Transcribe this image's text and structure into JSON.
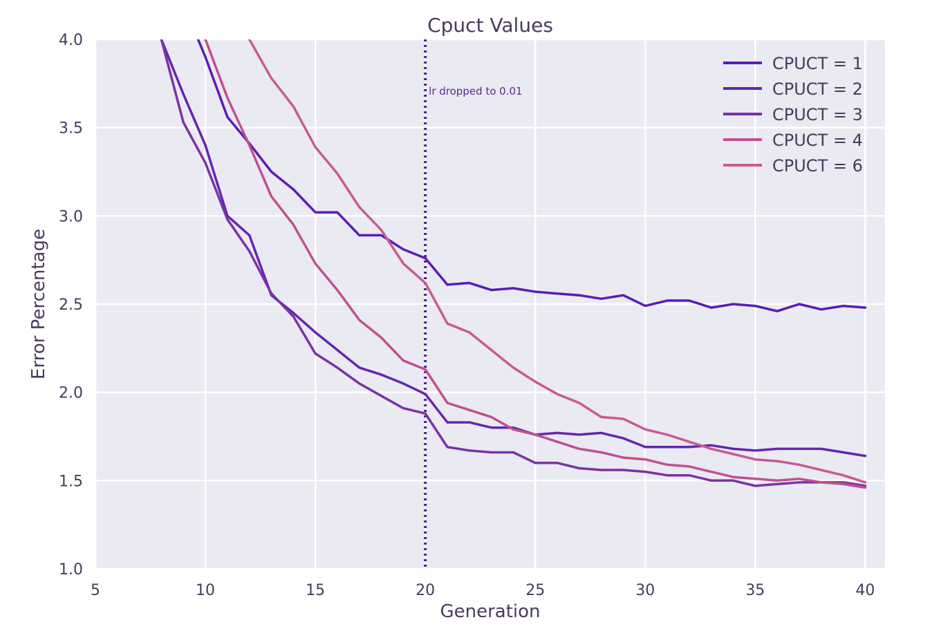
{
  "chart_data": {
    "type": "line",
    "title": "Cpuct Values",
    "xlabel": "Generation",
    "ylabel": "Error Percentage",
    "xlim": [
      5,
      40.9
    ],
    "ylim": [
      1.0,
      4.0
    ],
    "xticks": [
      5,
      10,
      15,
      20,
      25,
      30,
      35,
      40
    ],
    "yticks": [
      1.0,
      1.5,
      2.0,
      2.5,
      3.0,
      3.5,
      4.0
    ],
    "grid": true,
    "legend_position": "top-right",
    "annotations": [
      {
        "type": "vline",
        "x": 20,
        "style": "dotted",
        "color": "#4b1f87",
        "label": "lr dropped to 0.01"
      }
    ],
    "series": [
      {
        "name": "CPUCT = 1",
        "color": "#5a1db5",
        "x": [
          9,
          10,
          11,
          12,
          13,
          14,
          15,
          16,
          17,
          18,
          19,
          20,
          21,
          22,
          23,
          24,
          25,
          26,
          27,
          28,
          29,
          30,
          31,
          32,
          33,
          34,
          35,
          36,
          37,
          38,
          39,
          40
        ],
        "y": [
          4.2,
          3.9,
          3.56,
          3.41,
          3.25,
          3.15,
          3.02,
          3.02,
          2.89,
          2.89,
          2.81,
          2.76,
          2.61,
          2.62,
          2.58,
          2.59,
          2.57,
          2.56,
          2.55,
          2.53,
          2.55,
          2.49,
          2.52,
          2.52,
          2.48,
          2.5,
          2.49,
          2.46,
          2.5,
          2.47,
          2.49,
          2.48
        ]
      },
      {
        "name": "CPUCT = 2",
        "color": "#6326b0",
        "x": [
          8,
          9,
          10,
          11,
          12,
          13,
          14,
          15,
          16,
          17,
          18,
          19,
          20,
          21,
          22,
          23,
          24,
          25,
          26,
          27,
          28,
          29,
          30,
          31,
          32,
          33,
          34,
          35,
          36,
          37,
          38,
          39,
          40
        ],
        "y": [
          4.0,
          3.69,
          3.4,
          3.0,
          2.89,
          2.55,
          2.45,
          2.34,
          2.24,
          2.14,
          2.1,
          2.05,
          1.99,
          1.83,
          1.83,
          1.8,
          1.8,
          1.76,
          1.77,
          1.76,
          1.77,
          1.74,
          1.69,
          1.69,
          1.69,
          1.7,
          1.68,
          1.67,
          1.68,
          1.68,
          1.68,
          1.66,
          1.64
        ]
      },
      {
        "name": "CPUCT = 3",
        "color": "#7a32a8",
        "x": [
          8,
          9,
          10,
          11,
          12,
          13,
          14,
          15,
          16,
          17,
          18,
          19,
          20,
          21,
          22,
          23,
          24,
          25,
          26,
          27,
          28,
          29,
          30,
          31,
          32,
          33,
          34,
          35,
          36,
          37,
          38,
          39,
          40
        ],
        "y": [
          4.0,
          3.53,
          3.3,
          2.98,
          2.8,
          2.56,
          2.43,
          2.22,
          2.14,
          2.05,
          1.98,
          1.91,
          1.88,
          1.69,
          1.67,
          1.66,
          1.66,
          1.6,
          1.6,
          1.57,
          1.56,
          1.56,
          1.55,
          1.53,
          1.53,
          1.5,
          1.5,
          1.47,
          1.48,
          1.49,
          1.49,
          1.49,
          1.47
        ]
      },
      {
        "name": "CPUCT = 4",
        "color": "#c0508f",
        "x": [
          10,
          11,
          12,
          13,
          14,
          15,
          16,
          17,
          18,
          19,
          20,
          21,
          22,
          23,
          24,
          25,
          26,
          27,
          28,
          29,
          30,
          31,
          32,
          33,
          34,
          35,
          36,
          37,
          38,
          39,
          40
        ],
        "y": [
          4.0,
          3.67,
          3.4,
          3.11,
          2.95,
          2.73,
          2.58,
          2.41,
          2.31,
          2.18,
          2.13,
          1.94,
          1.9,
          1.86,
          1.79,
          1.76,
          1.72,
          1.68,
          1.66,
          1.63,
          1.62,
          1.59,
          1.58,
          1.55,
          1.52,
          1.51,
          1.5,
          1.51,
          1.49,
          1.48,
          1.46
        ]
      },
      {
        "name": "CPUCT = 6",
        "color": "#c85a92",
        "x": [
          12,
          13,
          14,
          15,
          16,
          17,
          18,
          19,
          20,
          21,
          22,
          23,
          24,
          25,
          26,
          27,
          28,
          29,
          30,
          31,
          32,
          33,
          34,
          35,
          36,
          37,
          38,
          39,
          40
        ],
        "y": [
          4.0,
          3.78,
          3.62,
          3.39,
          3.24,
          3.05,
          2.92,
          2.73,
          2.62,
          2.39,
          2.34,
          2.24,
          2.14,
          2.06,
          1.99,
          1.94,
          1.86,
          1.85,
          1.79,
          1.76,
          1.72,
          1.68,
          1.65,
          1.62,
          1.61,
          1.59,
          1.56,
          1.53,
          1.49
        ]
      }
    ]
  }
}
